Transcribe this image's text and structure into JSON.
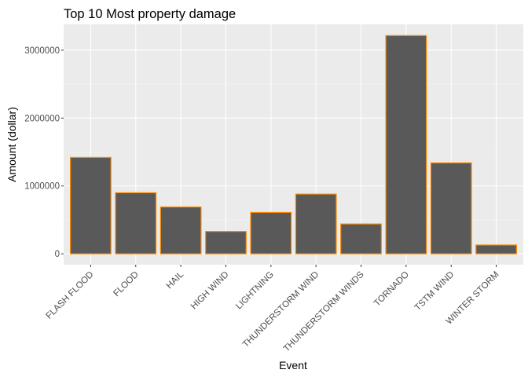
{
  "chart_data": {
    "type": "bar",
    "title": "Top 10 Most property damage",
    "xlabel": "Event",
    "ylabel": "Amount (dollar)",
    "categories": [
      "FLASH FLOOD",
      "FLOOD",
      "HAIL",
      "HIGH WIND",
      "LIGHTNING",
      "THUNDERSTORM WIND",
      "THUNDERSTORM WINDS",
      "TORNADO",
      "TSTM WIND",
      "WINTER STORM"
    ],
    "values": [
      1420000,
      900000,
      690000,
      330000,
      610000,
      880000,
      440000,
      3215000,
      1340000,
      130000
    ],
    "ylim": [
      -160000,
      3380000
    ],
    "yticks": [
      0,
      1000000,
      2000000,
      3000000
    ],
    "ytick_labels": [
      "0",
      "1000000",
      "2000000",
      "3000000"
    ],
    "grid": true,
    "colors": {
      "bar_fill": "#595959",
      "bar_outline": "#ff8c00",
      "panel": "#ebebeb",
      "grid": "#ffffff"
    }
  }
}
